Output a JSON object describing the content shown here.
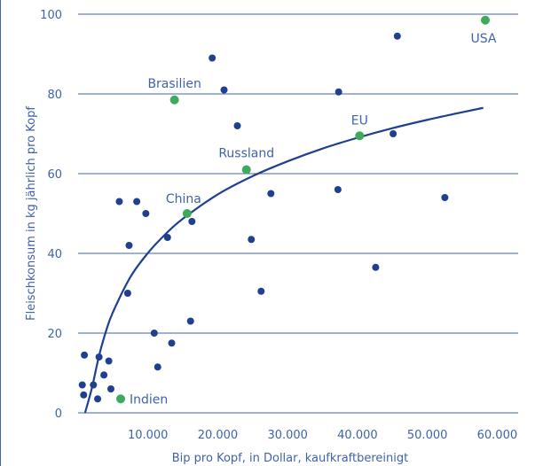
{
  "chart_data": {
    "type": "scatter",
    "title": "",
    "xlabel": "Bip pro Kopf, in Dollar, kaufkraftbereinigt",
    "ylabel": "Fleischkonsum in kg jährlich pro Kopf",
    "xlim": [
      0,
      63000
    ],
    "ylim": [
      0,
      100
    ],
    "x_ticks": [
      10000,
      20000,
      30000,
      40000,
      50000,
      60000
    ],
    "x_tick_labels": [
      "10.000",
      "20.000",
      "30.000",
      "40.000",
      "50.000",
      "60.000"
    ],
    "y_ticks": [
      0,
      20,
      40,
      60,
      80,
      100
    ],
    "y_tick_labels": [
      "0",
      "20",
      "40",
      "60",
      "80",
      "100"
    ],
    "grid": "horizontal",
    "colors": {
      "other": "#1f3f8f",
      "highlight": "#3daa5c",
      "curve": "#1f3f8f",
      "grid": "#3f63a8",
      "text": "#3f63a8"
    },
    "series": [
      {
        "points": [
          [
            600,
            7
          ],
          [
            900,
            14.5
          ],
          [
            800,
            4.5
          ],
          [
            2200,
            7
          ],
          [
            2800,
            3.5
          ],
          [
            3000,
            14
          ],
          [
            3700,
            9.5
          ],
          [
            4400,
            13
          ],
          [
            4700,
            6
          ],
          [
            5900,
            53
          ],
          [
            7300,
            42
          ],
          [
            7100,
            30
          ],
          [
            8400,
            53
          ],
          [
            9700,
            50
          ],
          [
            10900,
            20
          ],
          [
            11400,
            11.5
          ],
          [
            12800,
            44
          ],
          [
            13400,
            17.5
          ],
          [
            16100,
            23
          ],
          [
            16300,
            48
          ],
          [
            19200,
            89
          ],
          [
            20900,
            81
          ],
          [
            22800,
            72
          ],
          [
            24800,
            43.5
          ],
          [
            26200,
            30.5
          ],
          [
            27600,
            55
          ],
          [
            37300,
            80.5
          ],
          [
            37200,
            56
          ],
          [
            42600,
            36.5
          ],
          [
            45100,
            70
          ],
          [
            45700,
            94.5
          ],
          [
            52500,
            54
          ]
        ]
      },
      {
        "points": [
          [
            6100,
            3.5
          ],
          [
            13800,
            78.5
          ],
          [
            15600,
            50
          ],
          [
            24100,
            61
          ],
          [
            40300,
            69.5
          ],
          [
            58300,
            98.5
          ]
        ],
        "labels": [
          "Indien",
          "Brasilien",
          "China",
          "Russland",
          "EU",
          "USA"
        ]
      }
    ],
    "trend_curve": [
      [
        1000,
        0
      ],
      [
        2000,
        6.4
      ],
      [
        3000,
        14.3
      ],
      [
        4000,
        20.5
      ],
      [
        5000,
        25.3
      ],
      [
        7500,
        34.1
      ],
      [
        10000,
        40.1
      ],
      [
        12500,
        44.8
      ],
      [
        15000,
        48.7
      ],
      [
        20000,
        54.8
      ],
      [
        25000,
        59.4
      ],
      [
        30000,
        63.1
      ],
      [
        35000,
        66.3
      ],
      [
        40000,
        69.0
      ],
      [
        45000,
        71.4
      ],
      [
        50000,
        73.5
      ],
      [
        55000,
        75.4
      ],
      [
        58000,
        76.5
      ]
    ]
  }
}
